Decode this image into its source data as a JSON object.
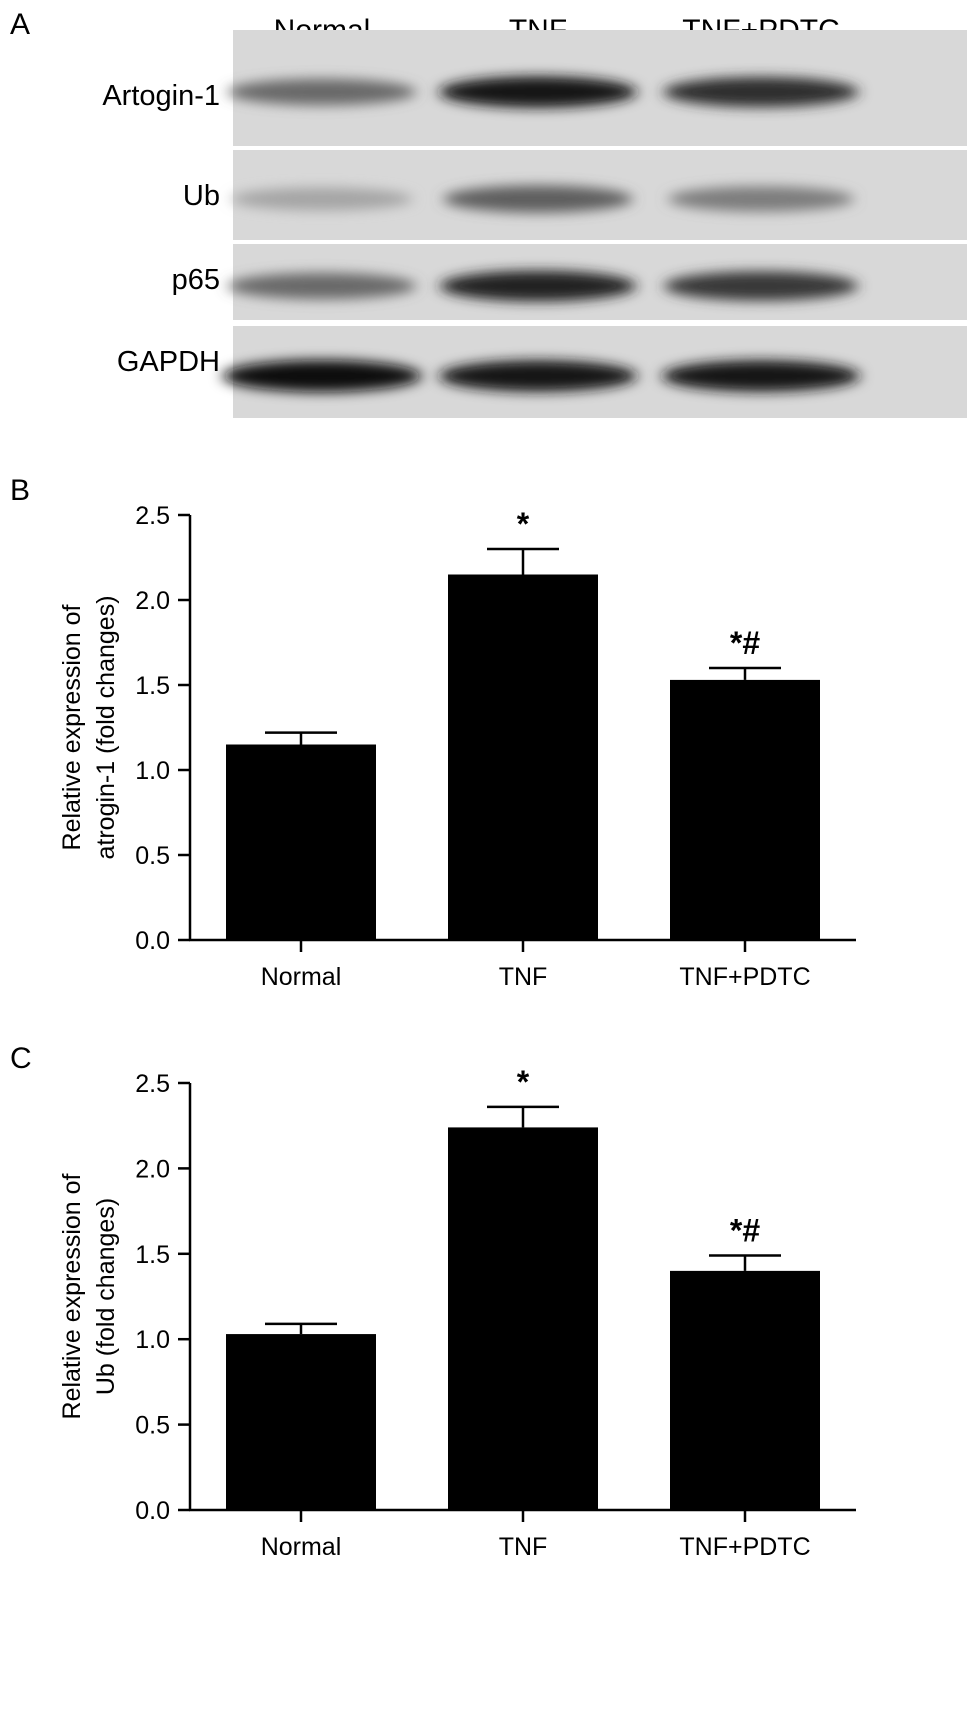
{
  "panels": {
    "a": {
      "letter": "A"
    },
    "b": {
      "letter": "B"
    },
    "c": {
      "letter": "C"
    }
  },
  "blot": {
    "lanes": [
      "Normal",
      "TNF",
      "TNF+PDTC"
    ],
    "rows": [
      {
        "label": "Artogin-1",
        "intensities": [
          0.55,
          0.95,
          0.85
        ]
      },
      {
        "label": "Ub",
        "intensities": [
          0.25,
          0.6,
          0.45
        ]
      },
      {
        "label": "p65",
        "intensities": [
          0.55,
          0.9,
          0.8
        ]
      },
      {
        "label": "GAPDH",
        "intensities": [
          1.0,
          0.95,
          0.95
        ]
      }
    ]
  },
  "chart_data": [
    {
      "panel": "B",
      "type": "bar",
      "categories": [
        "Normal",
        "TNF",
        "TNF+PDTC"
      ],
      "values": [
        1.15,
        2.15,
        1.53
      ],
      "errors": [
        0.07,
        0.15,
        0.07
      ],
      "annotations": [
        "",
        "*",
        "*#"
      ],
      "title": "",
      "xlabel": "",
      "ylabel_lines": [
        "Relative expression of",
        "atrogin-1 (fold changes)"
      ],
      "ylim": [
        0,
        2.5
      ],
      "yticks": [
        "0.0",
        "0.5",
        "1.0",
        "1.5",
        "2.0",
        "2.5"
      ],
      "grid": false,
      "bar_color": "#000000"
    },
    {
      "panel": "C",
      "type": "bar",
      "categories": [
        "Normal",
        "TNF",
        "TNF+PDTC"
      ],
      "values": [
        1.03,
        2.24,
        1.4
      ],
      "errors": [
        0.06,
        0.12,
        0.09
      ],
      "annotations": [
        "",
        "*",
        "*#"
      ],
      "title": "",
      "xlabel": "",
      "ylabel_lines": [
        "Relative expression of",
        "Ub (fold changes)"
      ],
      "ylim": [
        0,
        2.5
      ],
      "yticks": [
        "0.0",
        "0.5",
        "1.0",
        "1.5",
        "2.0",
        "2.5"
      ],
      "grid": false,
      "bar_color": "#000000"
    }
  ]
}
